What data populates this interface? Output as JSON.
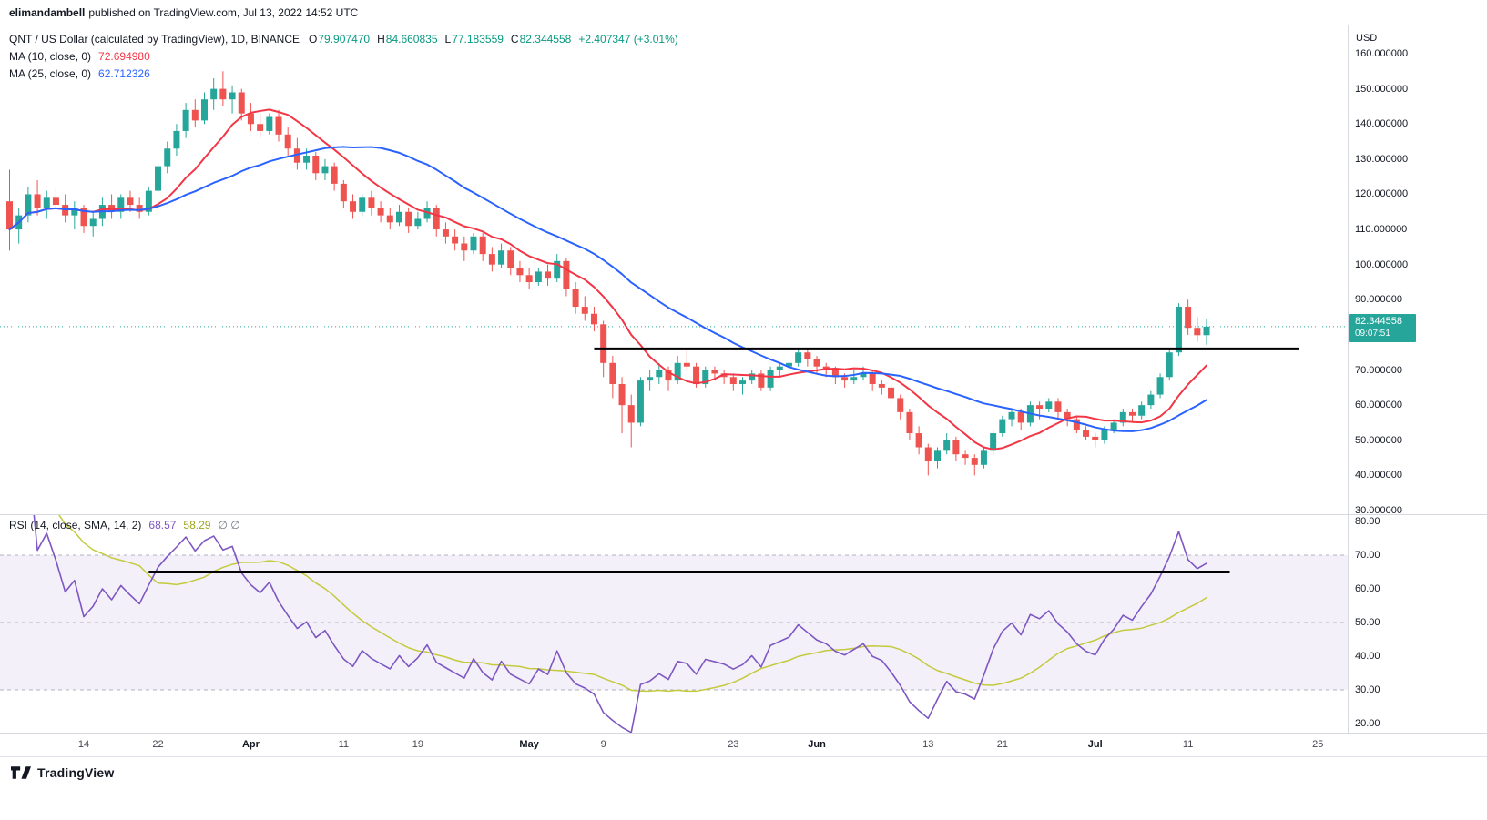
{
  "topbar": {
    "username": "elimandambell",
    "rest": "published on TradingView.com, Jul 13, 2022 14:52 UTC"
  },
  "legend": {
    "symbol": "QNT / US Dollar (calculated by TradingView), 1D, BINANCE",
    "ohlc": {
      "o_label": "O",
      "o": "79.907470",
      "h_label": "H",
      "h": "84.660835",
      "l_label": "L",
      "l": "77.183559",
      "c_label": "C",
      "c": "82.344558",
      "change": "+2.407347 (+3.01%)"
    },
    "ma10": {
      "label": "MA (10, close, 0)",
      "value": "72.694980"
    },
    "ma25": {
      "label": "MA (25, close, 0)",
      "value": "62.712326"
    }
  },
  "rsi_legend": {
    "label": "RSI (14, close, SMA, 14, 2)",
    "value": "68.57",
    "ma_value": "58.29",
    "extra": "∅ ∅"
  },
  "price_axis": {
    "title": "USD",
    "labels": [
      "160.000000",
      "150.000000",
      "140.000000",
      "130.000000",
      "120.000000",
      "110.000000",
      "100.000000",
      "90.000000",
      "80.000000",
      "70.000000",
      "60.000000",
      "50.000000",
      "40.000000",
      "30.000000"
    ]
  },
  "rsi_axis": {
    "labels": [
      "80.00",
      "70.00",
      "60.00",
      "50.00",
      "40.00",
      "30.00",
      "20.00"
    ]
  },
  "badge": {
    "price": "82.344558",
    "countdown": "09:07:51"
  },
  "time_axis": [
    {
      "label": "14",
      "i": 9,
      "major": false
    },
    {
      "label": "22",
      "i": 17,
      "major": false
    },
    {
      "label": "Apr",
      "i": 27,
      "major": true
    },
    {
      "label": "11",
      "i": 37,
      "major": false
    },
    {
      "label": "19",
      "i": 45,
      "major": false
    },
    {
      "label": "May",
      "i": 57,
      "major": true
    },
    {
      "label": "9",
      "i": 65,
      "major": false
    },
    {
      "label": "23",
      "i": 79,
      "major": false
    },
    {
      "label": "Jun",
      "i": 88,
      "major": true
    },
    {
      "label": "13",
      "i": 100,
      "major": false
    },
    {
      "label": "21",
      "i": 108,
      "major": false
    },
    {
      "label": "Jul",
      "i": 118,
      "major": true
    },
    {
      "label": "11",
      "i": 128,
      "major": false
    },
    {
      "label": "25",
      "i": 142,
      "major": false
    }
  ],
  "footer": {
    "brand": "TradingView"
  },
  "chart_data": {
    "type": "candlestick",
    "symbol": "QNT / US Dollar",
    "exchange": "BINANCE",
    "interval": "1D",
    "last_price": 82.344558,
    "price_axis_range": [
      30,
      160
    ],
    "ma10_last": 72.69498,
    "ma25_last": 62.712326,
    "overlays": [
      {
        "name": "MA",
        "length": 10,
        "color_key": "ma10"
      },
      {
        "name": "MA",
        "length": 25,
        "color_key": "ma25"
      }
    ],
    "trendline": {
      "price": 76,
      "i1": 64,
      "i2": 140
    },
    "rsi": {
      "length": 14,
      "ma_length": 14,
      "value": 68.57,
      "ma_value": 58.29,
      "range": [
        20,
        80
      ],
      "levels": [
        70,
        50,
        30
      ],
      "trendline": {
        "value": 65,
        "i1": 16,
        "i2": 132.5
      }
    },
    "colors": {
      "up": "#26a69a",
      "down": "#ef5350",
      "ma10": "#f23645",
      "ma25": "#2962ff",
      "rsi": "#7e57c2",
      "rsi_ma": "#c3ca3d",
      "rsi_band": "rgba(126,87,194,0.09)",
      "level_line": "#9598a1",
      "trendline": "#000000",
      "last_price_line": "#26a69a",
      "badge_bg": "#26a69a"
    },
    "candles": [
      [
        118,
        127,
        104,
        110
      ],
      [
        110,
        116,
        106,
        114
      ],
      [
        114,
        122,
        112,
        120
      ],
      [
        120,
        124,
        114,
        116
      ],
      [
        116,
        121,
        113,
        119
      ],
      [
        119,
        122,
        115,
        117
      ],
      [
        117,
        120,
        112,
        114
      ],
      [
        114,
        118,
        110,
        116
      ],
      [
        116,
        117,
        109,
        111
      ],
      [
        111,
        115,
        108,
        113
      ],
      [
        113,
        119,
        111,
        117
      ],
      [
        117,
        120,
        113,
        115
      ],
      [
        115,
        120,
        113,
        119
      ],
      [
        119,
        121,
        115,
        117
      ],
      [
        117,
        119,
        113,
        115
      ],
      [
        115,
        122,
        114,
        121
      ],
      [
        121,
        129,
        120,
        128
      ],
      [
        128,
        135,
        126,
        133
      ],
      [
        133,
        140,
        131,
        138
      ],
      [
        138,
        146,
        136,
        144
      ],
      [
        144,
        147,
        139,
        141
      ],
      [
        141,
        149,
        140,
        147
      ],
      [
        147,
        153,
        144,
        150
      ],
      [
        150,
        155,
        145,
        147
      ],
      [
        147,
        151,
        143,
        149
      ],
      [
        149,
        150,
        141,
        143
      ],
      [
        143,
        146,
        138,
        140
      ],
      [
        140,
        143,
        136,
        138
      ],
      [
        138,
        143,
        137,
        142
      ],
      [
        142,
        144,
        135,
        137
      ],
      [
        137,
        139,
        131,
        133
      ],
      [
        133,
        136,
        127,
        129
      ],
      [
        129,
        133,
        127,
        131
      ],
      [
        131,
        132,
        124,
        126
      ],
      [
        126,
        130,
        124,
        128
      ],
      [
        128,
        129,
        121,
        123
      ],
      [
        123,
        124,
        116,
        118
      ],
      [
        118,
        120,
        113,
        115
      ],
      [
        115,
        120,
        114,
        119
      ],
      [
        119,
        121,
        114,
        116
      ],
      [
        116,
        118,
        112,
        114
      ],
      [
        114,
        116,
        110,
        112
      ],
      [
        112,
        117,
        111,
        115
      ],
      [
        115,
        116,
        109,
        111
      ],
      [
        111,
        115,
        110,
        113
      ],
      [
        113,
        118,
        112,
        116
      ],
      [
        116,
        117,
        108,
        110
      ],
      [
        110,
        112,
        106,
        108
      ],
      [
        108,
        110,
        104,
        106
      ],
      [
        106,
        108,
        101,
        104
      ],
      [
        104,
        109,
        103,
        108
      ],
      [
        108,
        109,
        101,
        103
      ],
      [
        103,
        105,
        98,
        100
      ],
      [
        100,
        106,
        99,
        104
      ],
      [
        104,
        105,
        97,
        99
      ],
      [
        99,
        101,
        95,
        97
      ],
      [
        97,
        99,
        93,
        95
      ],
      [
        95,
        99,
        94,
        98
      ],
      [
        98,
        100,
        94,
        96
      ],
      [
        96,
        103,
        95,
        101
      ],
      [
        101,
        102,
        91,
        93
      ],
      [
        93,
        95,
        86,
        88
      ],
      [
        88,
        91,
        84,
        86
      ],
      [
        86,
        88,
        81,
        83
      ],
      [
        83,
        84,
        68,
        72
      ],
      [
        72,
        74,
        62,
        66
      ],
      [
        66,
        68,
        52,
        60
      ],
      [
        60,
        63,
        48,
        55
      ],
      [
        55,
        68,
        54,
        67
      ],
      [
        67,
        70,
        64,
        68
      ],
      [
        68,
        72,
        66,
        70
      ],
      [
        70,
        71,
        64,
        67
      ],
      [
        67,
        74,
        66,
        72
      ],
      [
        72,
        76,
        70,
        71
      ],
      [
        71,
        72,
        65,
        66
      ],
      [
        66,
        71,
        65,
        70
      ],
      [
        70,
        71,
        67,
        69
      ],
      [
        69,
        70,
        66,
        68
      ],
      [
        68,
        69,
        64,
        66
      ],
      [
        66,
        68,
        63,
        67
      ],
      [
        67,
        70,
        66,
        69
      ],
      [
        69,
        70,
        64,
        65
      ],
      [
        65,
        71,
        64,
        70
      ],
      [
        70,
        72,
        68,
        71
      ],
      [
        71,
        73,
        69,
        72
      ],
      [
        72,
        76,
        71,
        75
      ],
      [
        75,
        76,
        71,
        73
      ],
      [
        73,
        74,
        69,
        71
      ],
      [
        71,
        72,
        68,
        70
      ],
      [
        70,
        71,
        66,
        68
      ],
      [
        68,
        69,
        65,
        67
      ],
      [
        67,
        70,
        66,
        68
      ],
      [
        68,
        71,
        67,
        69
      ],
      [
        69,
        70,
        64,
        66
      ],
      [
        66,
        67,
        63,
        65
      ],
      [
        65,
        66,
        60,
        62
      ],
      [
        62,
        63,
        56,
        58
      ],
      [
        58,
        59,
        50,
        52
      ],
      [
        52,
        54,
        46,
        48
      ],
      [
        48,
        49,
        40,
        44
      ],
      [
        44,
        48,
        42,
        47
      ],
      [
        47,
        52,
        46,
        50
      ],
      [
        50,
        51,
        44,
        46
      ],
      [
        46,
        47,
        43,
        45
      ],
      [
        45,
        46,
        40,
        43
      ],
      [
        43,
        48,
        42,
        47
      ],
      [
        47,
        53,
        46,
        52
      ],
      [
        52,
        57,
        51,
        56
      ],
      [
        56,
        59,
        54,
        58
      ],
      [
        58,
        59,
        53,
        55
      ],
      [
        55,
        61,
        54,
        60
      ],
      [
        60,
        61,
        56,
        59
      ],
      [
        59,
        62,
        58,
        61
      ],
      [
        61,
        62,
        56,
        58
      ],
      [
        58,
        59,
        54,
        56
      ],
      [
        56,
        57,
        52,
        53
      ],
      [
        53,
        54,
        50,
        51
      ],
      [
        51,
        52,
        48,
        50
      ],
      [
        50,
        54,
        49,
        53
      ],
      [
        53,
        56,
        52,
        55
      ],
      [
        55,
        59,
        54,
        58
      ],
      [
        58,
        59,
        55,
        57
      ],
      [
        57,
        61,
        56,
        60
      ],
      [
        60,
        64,
        59,
        63
      ],
      [
        63,
        69,
        62,
        68
      ],
      [
        68,
        76,
        67,
        75
      ],
      [
        75,
        89,
        74,
        88
      ],
      [
        88,
        90,
        80,
        82
      ],
      [
        82,
        85,
        78,
        79.9
      ],
      [
        79.90747,
        84.660835,
        77.183559,
        82.344558
      ]
    ]
  }
}
